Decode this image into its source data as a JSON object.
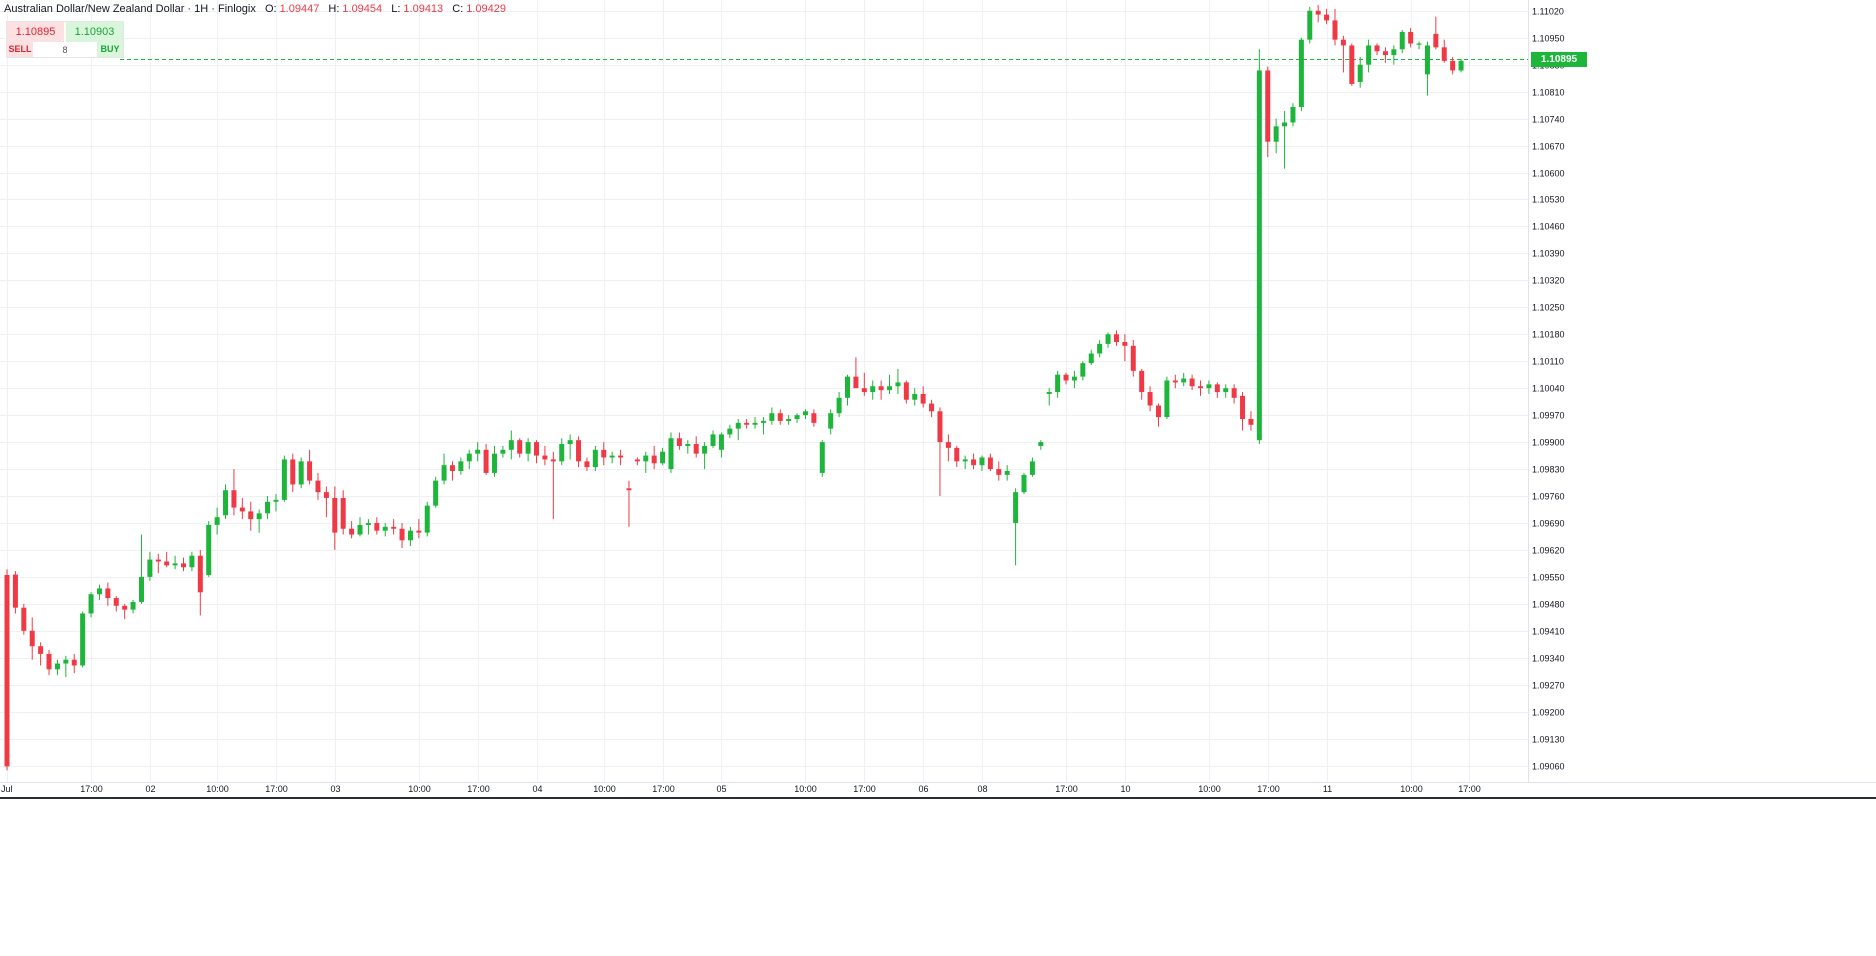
{
  "header": {
    "title": "Australian Dollar/New Zealand Dollar · 1H · Finlogix",
    "ohlc": [
      {
        "key": "O:",
        "value": "1.09447"
      },
      {
        "key": "H:",
        "value": "1.09454"
      },
      {
        "key": "L:",
        "value": "1.09413"
      },
      {
        "key": "C:",
        "value": "1.09429"
      }
    ]
  },
  "trade_panel": {
    "sell_price": "1.10895",
    "buy_price": "1.10903",
    "sell_label": "SELL",
    "buy_label": "BUY",
    "quantity": "8"
  },
  "last_price": "1.10895",
  "colors": {
    "up": "#1db53a",
    "down": "#ef3a46",
    "grid": "#eef0f3",
    "last_price_line": "#1db53a"
  },
  "chart_data": {
    "type": "candlestick",
    "y_range": [
      1.0902,
      1.11035
    ],
    "y_ticks": [
      "1.11020",
      "1.10950",
      "1.10880",
      "1.10810",
      "1.10740",
      "1.10670",
      "1.10600",
      "1.10530",
      "1.10460",
      "1.10390",
      "1.10320",
      "1.10250",
      "1.10180",
      "1.10110",
      "1.10040",
      "1.09970",
      "1.09900",
      "1.09830",
      "1.09760",
      "1.09690",
      "1.09620",
      "1.09550",
      "1.09480",
      "1.09410",
      "1.09340",
      "1.09270",
      "1.09200",
      "1.09130",
      "1.09060"
    ],
    "x_ticks": [
      {
        "label": "Jul",
        "i": 0
      },
      {
        "label": "17:00",
        "i": 10
      },
      {
        "label": "02",
        "i": 17
      },
      {
        "label": "10:00",
        "i": 25
      },
      {
        "label": "17:00",
        "i": 32
      },
      {
        "label": "03",
        "i": 39
      },
      {
        "label": "10:00",
        "i": 49
      },
      {
        "label": "17:00",
        "i": 56
      },
      {
        "label": "04",
        "i": 63
      },
      {
        "label": "10:00",
        "i": 71
      },
      {
        "label": "17:00",
        "i": 78
      },
      {
        "label": "05",
        "i": 85
      },
      {
        "label": "10:00",
        "i": 95
      },
      {
        "label": "17:00",
        "i": 102
      },
      {
        "label": "06",
        "i": 109
      },
      {
        "label": "08",
        "i": 116
      },
      {
        "label": "17:00",
        "i": 126
      },
      {
        "label": "10",
        "i": 133
      },
      {
        "label": "10:00",
        "i": 143
      },
      {
        "label": "17:00",
        "i": 150
      },
      {
        "label": "11",
        "i": 157
      },
      {
        "label": "10:00",
        "i": 167
      },
      {
        "label": "17:00",
        "i": 174
      }
    ],
    "candles": [
      [
        1.09555,
        1.0957,
        1.09048,
        1.09058
      ],
      [
        1.09556,
        1.09565,
        1.09455,
        1.0947
      ],
      [
        1.0947,
        1.0948,
        1.094,
        1.0941
      ],
      [
        1.0941,
        1.09445,
        1.09335,
        1.0937
      ],
      [
        1.0937,
        1.0938,
        1.0932,
        1.0935
      ],
      [
        1.0935,
        1.0936,
        1.09295,
        1.0931
      ],
      [
        1.0931,
        1.09335,
        1.09295,
        1.09325
      ],
      [
        1.09325,
        1.09345,
        1.0929,
        1.09335
      ],
      [
        1.09335,
        1.0935,
        1.093,
        1.0932
      ],
      [
        1.0932,
        1.0946,
        1.09315,
        1.09455
      ],
      [
        1.09455,
        1.0951,
        1.09445,
        1.09505
      ],
      [
        1.09505,
        1.0953,
        1.0949,
        1.0952
      ],
      [
        1.0952,
        1.09535,
        1.09475,
        1.09495
      ],
      [
        1.09495,
        1.095,
        1.0946,
        1.09475
      ],
      [
        1.09475,
        1.0948,
        1.0944,
        1.09465
      ],
      [
        1.09465,
        1.0949,
        1.09455,
        1.09485
      ],
      [
        1.09485,
        1.0966,
        1.0948,
        1.0955
      ],
      [
        1.0955,
        1.09615,
        1.0954,
        1.09595
      ],
      [
        1.09595,
        1.0961,
        1.0956,
        1.0959
      ],
      [
        1.0959,
        1.09615,
        1.09575,
        1.0958
      ],
      [
        1.0958,
        1.09605,
        1.0957,
        1.09585
      ],
      [
        1.09585,
        1.096,
        1.09565,
        1.09575
      ],
      [
        1.09575,
        1.09615,
        1.09565,
        1.09605
      ],
      [
        1.09605,
        1.0962,
        1.0945,
        1.0951
      ],
      [
        1.09555,
        1.09695,
        1.0955,
        1.09685
      ],
      [
        1.09685,
        1.0973,
        1.0966,
        1.09705
      ],
      [
        1.0971,
        1.0979,
        1.097,
        1.09775
      ],
      [
        1.09775,
        1.0983,
        1.0971,
        1.0973
      ],
      [
        1.0973,
        1.09755,
        1.097,
        1.0972
      ],
      [
        1.0972,
        1.09745,
        1.0967,
        1.097
      ],
      [
        1.097,
        1.09725,
        1.09665,
        1.09715
      ],
      [
        1.09715,
        1.0976,
        1.097,
        1.09745
      ],
      [
        1.09745,
        1.09765,
        1.0972,
        1.0975
      ],
      [
        1.0975,
        1.09865,
        1.09745,
        1.09855
      ],
      [
        1.09855,
        1.0987,
        1.0977,
        1.0979
      ],
      [
        1.0979,
        1.0986,
        1.0978,
        1.0985
      ],
      [
        1.0985,
        1.0988,
        1.0979,
        1.098
      ],
      [
        1.098,
        1.0982,
        1.0975,
        1.0977
      ],
      [
        1.0977,
        1.09785,
        1.09705,
        1.09755
      ],
      [
        1.09755,
        1.09785,
        1.0962,
        1.09665
      ],
      [
        1.09755,
        1.09775,
        1.0966,
        1.09675
      ],
      [
        1.09675,
        1.09695,
        1.0965,
        1.0966
      ],
      [
        1.0966,
        1.09705,
        1.09655,
        1.09685
      ],
      [
        1.09685,
        1.097,
        1.0966,
        1.0969
      ],
      [
        1.0969,
        1.09705,
        1.0966,
        1.0967
      ],
      [
        1.0967,
        1.0969,
        1.09655,
        1.0968
      ],
      [
        1.0968,
        1.097,
        1.0966,
        1.09675
      ],
      [
        1.09675,
        1.0969,
        1.09625,
        1.09645
      ],
      [
        1.09645,
        1.0968,
        1.0963,
        1.0967
      ],
      [
        1.0967,
        1.097,
        1.0965,
        1.09665
      ],
      [
        1.09665,
        1.09745,
        1.09655,
        1.09735
      ],
      [
        1.09735,
        1.0981,
        1.0973,
        1.098
      ],
      [
        1.098,
        1.0987,
        1.0979,
        1.0984
      ],
      [
        1.0984,
        1.0985,
        1.098,
        1.09825
      ],
      [
        1.09825,
        1.0986,
        1.09815,
        1.0985
      ],
      [
        1.0985,
        1.0988,
        1.0983,
        1.0987
      ],
      [
        1.0987,
        1.099,
        1.0985,
        1.0988
      ],
      [
        1.0988,
        1.09895,
        1.09815,
        1.0982
      ],
      [
        1.0982,
        1.0989,
        1.0981,
        1.0987
      ],
      [
        1.0987,
        1.0989,
        1.0986,
        1.0988
      ],
      [
        1.0988,
        1.0993,
        1.09855,
        1.09905
      ],
      [
        1.09905,
        1.0991,
        1.0986,
        1.0987
      ],
      [
        1.0987,
        1.0991,
        1.0985,
        1.099
      ],
      [
        1.099,
        1.09905,
        1.09845,
        1.09865
      ],
      [
        1.09865,
        1.0989,
        1.0984,
        1.09855
      ],
      [
        1.09855,
        1.09875,
        1.097,
        1.0985
      ],
      [
        1.0985,
        1.0991,
        1.0984,
        1.09895
      ],
      [
        1.09895,
        1.0992,
        1.09855,
        1.09905
      ],
      [
        1.09905,
        1.09915,
        1.09835,
        1.0985
      ],
      [
        1.0985,
        1.0986,
        1.09825,
        1.09835
      ],
      [
        1.09835,
        1.0989,
        1.09825,
        1.0988
      ],
      [
        1.0988,
        1.099,
        1.0984,
        1.0986
      ],
      [
        1.0986,
        1.09875,
        1.09845,
        1.09865
      ],
      [
        1.09865,
        1.0988,
        1.0984,
        1.0986
      ],
      [
        1.0978,
        1.098,
        1.0968,
        1.09775
      ],
      [
        1.09855,
        1.0986,
        1.0984,
        1.0985
      ],
      [
        1.0985,
        1.09875,
        1.0982,
        1.09865
      ],
      [
        1.09865,
        1.0989,
        1.0983,
        1.09845
      ],
      [
        1.09845,
        1.09885,
        1.0984,
        1.09875
      ],
      [
        1.0983,
        1.09925,
        1.0982,
        1.0991
      ],
      [
        1.0991,
        1.09925,
        1.0988,
        1.0989
      ],
      [
        1.0989,
        1.09905,
        1.0987,
        1.09895
      ],
      [
        1.09895,
        1.09915,
        1.0986,
        1.0987
      ],
      [
        1.0987,
        1.099,
        1.0983,
        1.0989
      ],
      [
        1.0989,
        1.0993,
        1.09885,
        1.0992
      ],
      [
        1.0988,
        1.09925,
        1.0986,
        1.0992
      ],
      [
        1.0992,
        1.09945,
        1.0991,
        1.09935
      ],
      [
        1.09935,
        1.0996,
        1.09905,
        1.0995
      ],
      [
        1.0995,
        1.0996,
        1.09935,
        1.09945
      ],
      [
        1.09945,
        1.09965,
        1.09935,
        1.0995
      ],
      [
        1.0995,
        1.09965,
        1.0992,
        1.09955
      ],
      [
        1.09955,
        1.0999,
        1.09945,
        1.09975
      ],
      [
        1.09975,
        1.09985,
        1.09945,
        1.09955
      ],
      [
        1.09955,
        1.0997,
        1.09945,
        1.0996
      ],
      [
        1.0996,
        1.09975,
        1.0995,
        1.0997
      ],
      [
        1.0997,
        1.09985,
        1.0996,
        1.0998
      ],
      [
        1.09975,
        1.09985,
        1.0994,
        1.0995
      ],
      [
        1.0982,
        1.09905,
        1.0981,
        1.099
      ],
      [
        1.09935,
        1.09985,
        1.0992,
        1.09975
      ],
      [
        1.09975,
        1.1003,
        1.09965,
        1.10015
      ],
      [
        1.10015,
        1.10075,
        1.09995,
        1.1007
      ],
      [
        1.1007,
        1.1012,
        1.1006,
        1.1004
      ],
      [
        1.1004,
        1.1008,
        1.1002,
        1.1003
      ],
      [
        1.1003,
        1.1006,
        1.1001,
        1.10045
      ],
      [
        1.10045,
        1.1006,
        1.1001,
        1.10035
      ],
      [
        1.10035,
        1.10075,
        1.10025,
        1.10045
      ],
      [
        1.10045,
        1.1009,
        1.10025,
        1.10055
      ],
      [
        1.10055,
        1.1006,
        1.1,
        1.1001
      ],
      [
        1.1001,
        1.1004,
        1.09995,
        1.10025
      ],
      [
        1.10025,
        1.10045,
        1.0999,
        1.1
      ],
      [
        1.1,
        1.1001,
        1.09965,
        1.0998
      ],
      [
        1.0998,
        1.0999,
        1.0976,
        1.099
      ],
      [
        1.099,
        1.0992,
        1.0985,
        1.09885
      ],
      [
        1.09885,
        1.0989,
        1.09835,
        1.0985
      ],
      [
        1.0985,
        1.09865,
        1.0983,
        1.09855
      ],
      [
        1.09855,
        1.0987,
        1.0983,
        1.0984
      ],
      [
        1.0984,
        1.09865,
        1.09825,
        1.0986
      ],
      [
        1.0986,
        1.0987,
        1.09825,
        1.0983
      ],
      [
        1.0983,
        1.0985,
        1.098,
        1.09815
      ],
      [
        1.09815,
        1.0984,
        1.098,
        1.09825
      ],
      [
        1.0969,
        1.0978,
        1.0958,
        1.0977
      ],
      [
        1.0977,
        1.0982,
        1.09765,
        1.09815
      ],
      [
        1.09815,
        1.0986,
        1.0981,
        1.0985
      ],
      [
        1.0989,
        1.09905,
        1.0988,
        1.099
      ],
      [
        1.10025,
        1.1004,
        1.09995,
        1.1003
      ],
      [
        1.1003,
        1.10085,
        1.10015,
        1.10075
      ],
      [
        1.10075,
        1.1008,
        1.1005,
        1.1006
      ],
      [
        1.1006,
        1.10085,
        1.1004,
        1.1007
      ],
      [
        1.1007,
        1.1011,
        1.1006,
        1.10105
      ],
      [
        1.10105,
        1.1014,
        1.101,
        1.1013
      ],
      [
        1.1013,
        1.10165,
        1.1012,
        1.10155
      ],
      [
        1.10155,
        1.10185,
        1.10145,
        1.1018
      ],
      [
        1.1018,
        1.1019,
        1.1015,
        1.1016
      ],
      [
        1.1016,
        1.1018,
        1.1011,
        1.1015
      ],
      [
        1.1015,
        1.10165,
        1.1007,
        1.10085
      ],
      [
        1.10085,
        1.1009,
        1.1001,
        1.1003
      ],
      [
        1.1003,
        1.10045,
        1.0998,
        1.09995
      ],
      [
        1.09995,
        1.1,
        1.0994,
        1.09965
      ],
      [
        1.09965,
        1.1007,
        1.0996,
        1.1006
      ],
      [
        1.1006,
        1.10075,
        1.1004,
        1.10055
      ],
      [
        1.10055,
        1.1008,
        1.10045,
        1.10065
      ],
      [
        1.10065,
        1.10075,
        1.10035,
        1.10045
      ],
      [
        1.10045,
        1.1006,
        1.1002,
        1.1004
      ],
      [
        1.1004,
        1.1006,
        1.10025,
        1.1005
      ],
      [
        1.1005,
        1.10055,
        1.10015,
        1.1003
      ],
      [
        1.1003,
        1.1005,
        1.10015,
        1.1004
      ],
      [
        1.1004,
        1.1005,
        1.1,
        1.10015
      ],
      [
        1.1002,
        1.1003,
        1.0993,
        1.0996
      ],
      [
        1.0996,
        1.0998,
        1.0993,
        1.09945
      ],
      [
        1.09905,
        1.1092,
        1.09895,
        1.10865
      ],
      [
        1.10865,
        1.10875,
        1.1064,
        1.1068
      ],
      [
        1.1068,
        1.1074,
        1.1065,
        1.1072
      ],
      [
        1.1072,
        1.1076,
        1.1061,
        1.1073
      ],
      [
        1.1073,
        1.1078,
        1.1072,
        1.1077
      ],
      [
        1.1077,
        1.1095,
        1.1076,
        1.10945
      ],
      [
        1.10945,
        1.1103,
        1.10935,
        1.1102
      ],
      [
        1.1102,
        1.11035,
        1.1099,
        1.1101
      ],
      [
        1.1101,
        1.11025,
        1.10985,
        1.10995
      ],
      [
        1.10995,
        1.11025,
        1.1093,
        1.10945
      ],
      [
        1.10945,
        1.10955,
        1.1086,
        1.1093
      ],
      [
        1.1093,
        1.10935,
        1.10825,
        1.1083
      ],
      [
        1.10835,
        1.109,
        1.1082,
        1.1088
      ],
      [
        1.1088,
        1.10945,
        1.1086,
        1.1093
      ],
      [
        1.1093,
        1.10935,
        1.10905,
        1.10915
      ],
      [
        1.10915,
        1.10925,
        1.10885,
        1.10905
      ],
      [
        1.10905,
        1.1093,
        1.1088,
        1.1092
      ],
      [
        1.1092,
        1.1097,
        1.1091,
        1.10965
      ],
      [
        1.10965,
        1.10975,
        1.10925,
        1.10935
      ],
      [
        1.10935,
        1.1094,
        1.1092,
        1.10935
      ],
      [
        1.10855,
        1.1094,
        1.108,
        1.1093
      ],
      [
        1.1096,
        1.11005,
        1.1092,
        1.10925
      ],
      [
        1.10925,
        1.10945,
        1.10885,
        1.1089
      ],
      [
        1.1089,
        1.109,
        1.10855,
        1.10865
      ],
      [
        1.10865,
        1.10895,
        1.1086,
        1.1089
      ]
    ]
  }
}
